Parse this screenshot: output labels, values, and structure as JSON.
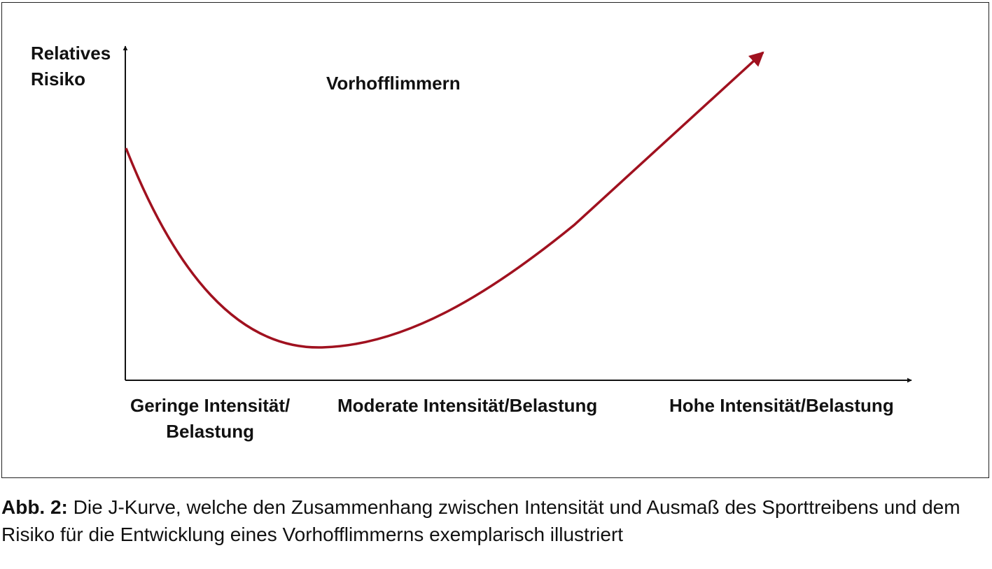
{
  "figure": {
    "title": "Vorhofflimmern",
    "y_axis_label_lines": [
      "Relatives",
      "Risiko"
    ],
    "x_labels": {
      "low_lines": [
        "Geringe Intensität/",
        "Belastung"
      ],
      "moderate": "Moderate Intensität/Belastung",
      "high": "Hohe Intensität/Belastung"
    },
    "curve_color": "#a0111f",
    "axis_color": "#111111"
  },
  "caption": {
    "label": "Abb. 2:",
    "text": " Die J-Kurve, welche den Zusammenhang zwischen Intensität und Ausmaß des Sporttreibens und dem Risiko für die Entwicklung eines Vorhofflimmerns exemplarisch illustriert"
  }
}
